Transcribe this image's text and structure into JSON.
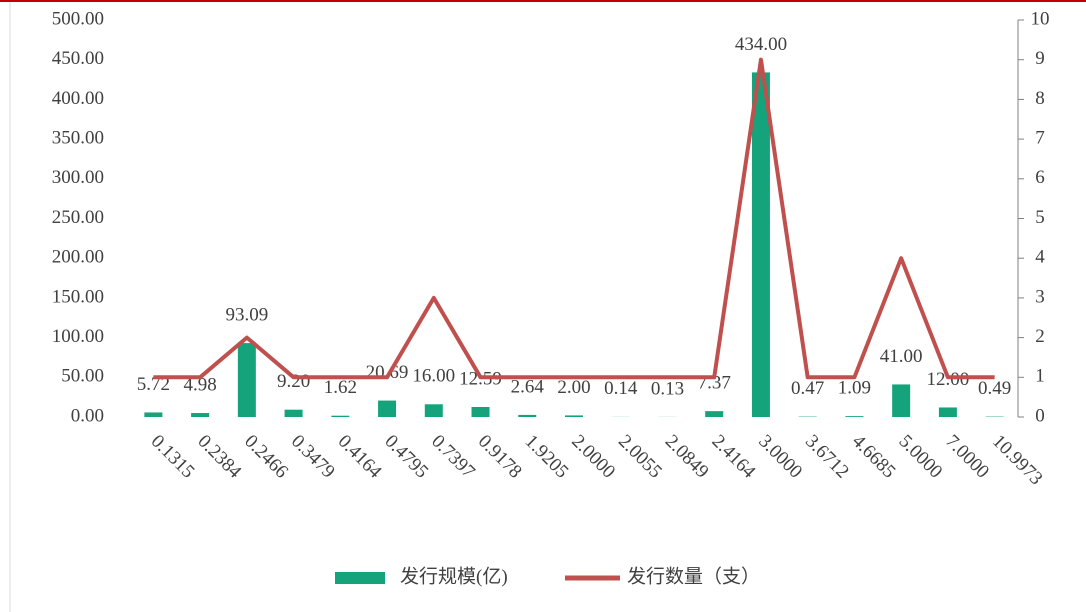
{
  "chart_data": {
    "type": "bar_line",
    "categories": [
      "0.1315",
      "0.2384",
      "0.2466",
      "0.3479",
      "0.4164",
      "0.4795",
      "0.7397",
      "0.9178",
      "1.9205",
      "2.0000",
      "2.0055",
      "2.0849",
      "2.4164",
      "3.0000",
      "3.6712",
      "4.6685",
      "5.0000",
      "7.0000",
      "10.9973"
    ],
    "series": [
      {
        "name": "发行规模(亿)",
        "color": "#14a37a",
        "type": "bar",
        "values": [
          5.72,
          4.98,
          93.09,
          9.2,
          1.62,
          20.69,
          16,
          12.59,
          2.64,
          2,
          0.14,
          0.13,
          7.37,
          434,
          0.47,
          1.09,
          41,
          12,
          0.49
        ],
        "value_labels": [
          "5.72",
          "4.98",
          "93.09",
          "9.20",
          "1.62",
          "20.69",
          "16.00",
          "12.59",
          "2.64",
          "2.00",
          "0.14",
          "0.13",
          "7.37",
          "434.00",
          "0.47",
          "1.09",
          "41.00",
          "12.00",
          "0.49"
        ]
      },
      {
        "name": "发行数量（支）",
        "color": "#c0504d",
        "type": "line",
        "axis": "y2",
        "values": [
          1,
          1,
          2,
          1,
          1,
          1,
          3,
          1,
          1,
          1,
          1,
          1,
          1,
          9,
          1,
          1,
          4,
          1,
          1
        ]
      }
    ],
    "ylim": [
      0,
      500
    ],
    "yticks": [
      {
        "value": 0,
        "label": "0.00"
      },
      {
        "value": 50,
        "label": "50.00"
      },
      {
        "value": 100,
        "label": "100.00"
      },
      {
        "value": 150,
        "label": "150.00"
      },
      {
        "value": 200,
        "label": "200.00"
      },
      {
        "value": 250,
        "label": "250.00"
      },
      {
        "value": 300,
        "label": "300.00"
      },
      {
        "value": 350,
        "label": "350.00"
      },
      {
        "value": 400,
        "label": "400.00"
      },
      {
        "value": 450,
        "label": "450.00"
      },
      {
        "value": 500,
        "label": "500.00"
      }
    ],
    "y2lim": [
      0,
      10
    ],
    "y2ticks": [
      0,
      1,
      2,
      3,
      4,
      5,
      6,
      7,
      8,
      9,
      10
    ],
    "legend": "bottom"
  }
}
